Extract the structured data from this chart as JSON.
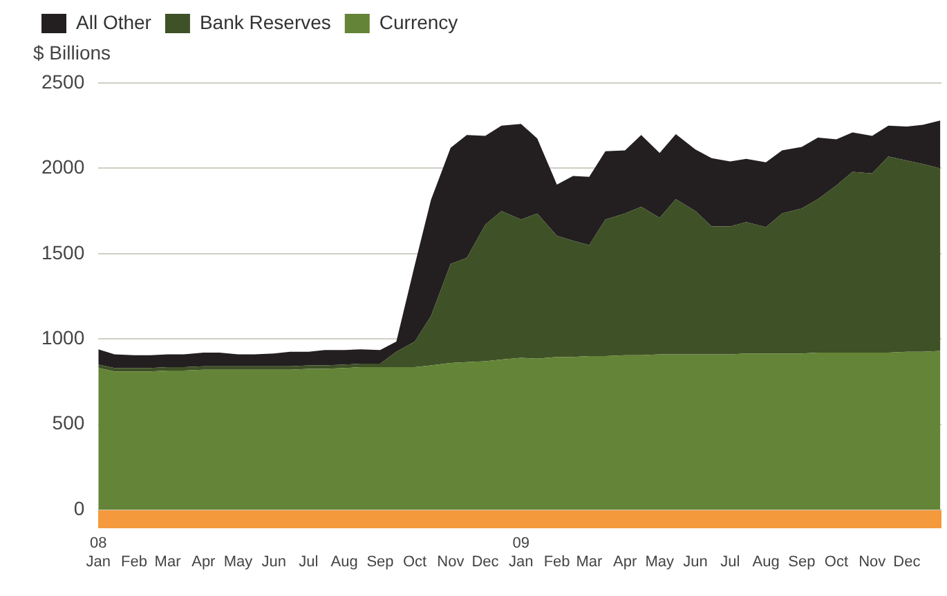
{
  "chart_data": {
    "type": "area",
    "stacked": true,
    "ylabel": "$ Billions",
    "x": [
      "2008-01-01",
      "2008-01-15",
      "2008-02-01",
      "2008-02-15",
      "2008-03-01",
      "2008-03-15",
      "2008-04-01",
      "2008-04-15",
      "2008-05-01",
      "2008-05-15",
      "2008-06-01",
      "2008-06-15",
      "2008-07-01",
      "2008-07-15",
      "2008-08-01",
      "2008-08-15",
      "2008-09-01",
      "2008-09-15",
      "2008-10-01",
      "2008-10-15",
      "2008-11-01",
      "2008-11-15",
      "2008-12-01",
      "2008-12-15",
      "2009-01-01",
      "2009-01-15",
      "2009-02-01",
      "2009-02-15",
      "2009-03-01",
      "2009-03-15",
      "2009-04-01",
      "2009-04-15",
      "2009-05-01",
      "2009-05-15",
      "2009-06-01",
      "2009-06-15",
      "2009-07-01",
      "2009-07-15",
      "2009-08-01",
      "2009-08-15",
      "2009-09-01",
      "2009-09-15",
      "2009-10-01",
      "2009-10-15",
      "2009-11-01",
      "2009-11-15",
      "2009-12-01",
      "2009-12-15",
      "2009-12-30"
    ],
    "series": [
      {
        "name": "Currency",
        "color": "#648437",
        "values": [
          830,
          810,
          810,
          810,
          815,
          815,
          820,
          820,
          820,
          820,
          820,
          820,
          825,
          825,
          830,
          835,
          835,
          835,
          835,
          845,
          860,
          865,
          870,
          880,
          890,
          885,
          895,
          895,
          900,
          900,
          905,
          905,
          910,
          910,
          910,
          910,
          910,
          915,
          915,
          915,
          915,
          920,
          920,
          920,
          920,
          920,
          925,
          925,
          930
        ]
      },
      {
        "name": "Bank Reserves",
        "color": "#3f5126",
        "values": [
          20,
          20,
          20,
          20,
          20,
          20,
          20,
          20,
          20,
          20,
          20,
          20,
          20,
          20,
          20,
          20,
          20,
          90,
          150,
          290,
          580,
          610,
          800,
          870,
          810,
          850,
          710,
          680,
          650,
          800,
          830,
          870,
          800,
          910,
          840,
          750,
          750,
          770,
          740,
          820,
          850,
          900,
          980,
          1060,
          1050,
          1150,
          1120,
          1100,
          1070
        ]
      },
      {
        "name": "All Other",
        "color": "#231f20",
        "values": [
          90,
          80,
          75,
          75,
          75,
          75,
          80,
          80,
          70,
          70,
          75,
          85,
          80,
          90,
          85,
          85,
          80,
          60,
          450,
          680,
          680,
          720,
          520,
          500,
          560,
          440,
          300,
          380,
          400,
          400,
          370,
          420,
          380,
          380,
          360,
          400,
          380,
          370,
          380,
          370,
          360,
          360,
          270,
          230,
          220,
          180,
          200,
          230,
          280
        ]
      }
    ],
    "ylim": [
      0,
      2500
    ],
    "yticks": [
      0,
      500,
      1000,
      1500,
      2000,
      2500
    ],
    "xlim": [
      "2008-01-01",
      "2009-12-31"
    ],
    "xticks": [
      {
        "value": "2008-01-01",
        "label": "08\nJan"
      },
      {
        "value": "2008-02-01",
        "label": "Feb"
      },
      {
        "value": "2008-03-01",
        "label": "Mar"
      },
      {
        "value": "2008-04-01",
        "label": "Apr"
      },
      {
        "value": "2008-05-01",
        "label": "May"
      },
      {
        "value": "2008-06-01",
        "label": "Jun"
      },
      {
        "value": "2008-07-01",
        "label": "Jul"
      },
      {
        "value": "2008-08-01",
        "label": "Aug"
      },
      {
        "value": "2008-09-01",
        "label": "Sep"
      },
      {
        "value": "2008-10-01",
        "label": "Oct"
      },
      {
        "value": "2008-11-01",
        "label": "Nov"
      },
      {
        "value": "2008-12-01",
        "label": "Dec"
      },
      {
        "value": "2009-01-01",
        "label": "09\nJan"
      },
      {
        "value": "2009-02-01",
        "label": "Feb"
      },
      {
        "value": "2009-03-01",
        "label": "Mar"
      },
      {
        "value": "2009-04-01",
        "label": "Apr"
      },
      {
        "value": "2009-05-01",
        "label": "May"
      },
      {
        "value": "2009-06-01",
        "label": "Jun"
      },
      {
        "value": "2009-07-01",
        "label": "Jul"
      },
      {
        "value": "2009-08-01",
        "label": "Aug"
      },
      {
        "value": "2009-09-01",
        "label": "Sep"
      },
      {
        "value": "2009-10-01",
        "label": "Oct"
      },
      {
        "value": "2009-11-01",
        "label": "Nov"
      },
      {
        "value": "2009-12-01",
        "label": "Dec"
      }
    ],
    "grid": "y",
    "legend": "top left"
  }
}
